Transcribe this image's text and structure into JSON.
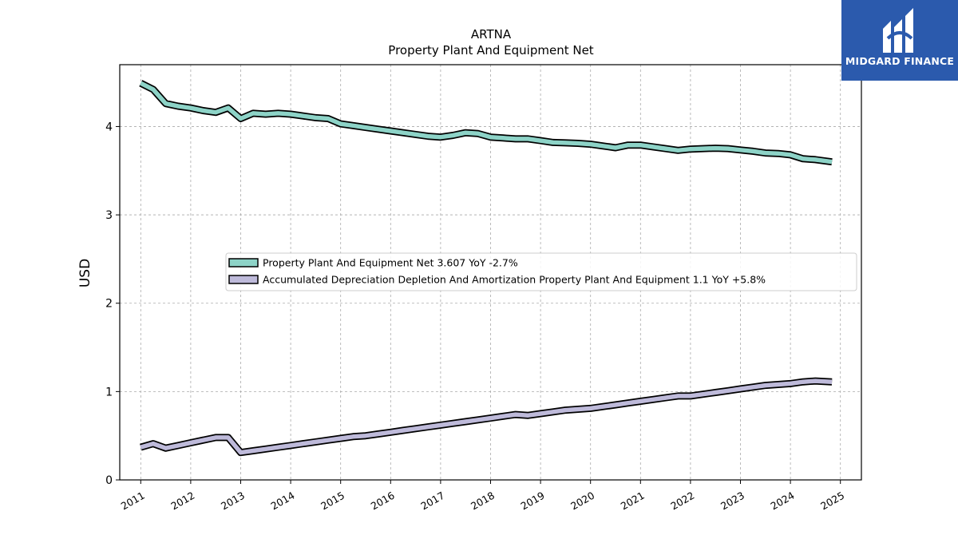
{
  "chart_data": {
    "type": "line",
    "title": "ARTNA",
    "subtitle": "Property Plant And Equipment Net",
    "xlabel": "",
    "ylabel": "USD",
    "xlim": [
      2010.58,
      2025.42
    ],
    "ylim": [
      0,
      4.7
    ],
    "x_ticks": [
      "2011",
      "2012",
      "2013",
      "2014",
      "2015",
      "2016",
      "2017",
      "2018",
      "2019",
      "2020",
      "2021",
      "2022",
      "2023",
      "2024",
      "2025"
    ],
    "y_ticks": [
      "0",
      "1",
      "2",
      "3",
      "4"
    ],
    "grid": true,
    "legend_position": "center-right",
    "series": [
      {
        "name": "Property Plant And Equipment Net",
        "legend_label": "Property Plant And Equipment Net  3.607 YoY -2.7%",
        "color": "#8dd3c7",
        "points": [
          [
            2011.0,
            4.49
          ],
          [
            2011.25,
            4.42
          ],
          [
            2011.5,
            4.26
          ],
          [
            2011.75,
            4.23
          ],
          [
            2012.0,
            4.21
          ],
          [
            2012.25,
            4.18
          ],
          [
            2012.5,
            4.16
          ],
          [
            2012.75,
            4.21
          ],
          [
            2013.0,
            4.09
          ],
          [
            2013.25,
            4.15
          ],
          [
            2013.5,
            4.14
          ],
          [
            2013.75,
            4.15
          ],
          [
            2014.0,
            4.14
          ],
          [
            2014.25,
            4.12
          ],
          [
            2014.5,
            4.1
          ],
          [
            2014.75,
            4.09
          ],
          [
            2015.0,
            4.03
          ],
          [
            2015.25,
            4.01
          ],
          [
            2015.5,
            3.99
          ],
          [
            2015.75,
            3.97
          ],
          [
            2016.0,
            3.95
          ],
          [
            2016.25,
            3.93
          ],
          [
            2016.5,
            3.91
          ],
          [
            2016.75,
            3.89
          ],
          [
            2017.0,
            3.88
          ],
          [
            2017.25,
            3.9
          ],
          [
            2017.5,
            3.93
          ],
          [
            2017.75,
            3.92
          ],
          [
            2018.0,
            3.88
          ],
          [
            2018.25,
            3.87
          ],
          [
            2018.5,
            3.86
          ],
          [
            2018.75,
            3.86
          ],
          [
            2019.0,
            3.84
          ],
          [
            2019.25,
            3.82
          ],
          [
            2019.5,
            3.815
          ],
          [
            2019.75,
            3.81
          ],
          [
            2020.0,
            3.8
          ],
          [
            2020.25,
            3.78
          ],
          [
            2020.5,
            3.76
          ],
          [
            2020.75,
            3.79
          ],
          [
            2021.0,
            3.79
          ],
          [
            2021.25,
            3.77
          ],
          [
            2021.5,
            3.75
          ],
          [
            2021.75,
            3.73
          ],
          [
            2022.0,
            3.745
          ],
          [
            2022.25,
            3.75
          ],
          [
            2022.5,
            3.755
          ],
          [
            2022.75,
            3.75
          ],
          [
            2023.0,
            3.735
          ],
          [
            2023.25,
            3.72
          ],
          [
            2023.5,
            3.7
          ],
          [
            2023.75,
            3.695
          ],
          [
            2024.0,
            3.68
          ],
          [
            2024.25,
            3.635
          ],
          [
            2024.5,
            3.625
          ],
          [
            2024.83,
            3.6
          ]
        ]
      },
      {
        "name": "Accumulated Depreciation Depletion And Amortization Property Plant And Equipment",
        "legend_label": "Accumulated Depreciation Depletion And Amortization Property Plant And Equipment  1.1 YoY +5.8%",
        "color": "#bebada",
        "points": [
          [
            2011.0,
            0.37
          ],
          [
            2011.25,
            0.41
          ],
          [
            2011.5,
            0.36
          ],
          [
            2011.75,
            0.39
          ],
          [
            2012.0,
            0.42
          ],
          [
            2012.25,
            0.45
          ],
          [
            2012.5,
            0.48
          ],
          [
            2012.75,
            0.48
          ],
          [
            2013.0,
            0.31
          ],
          [
            2013.25,
            0.33
          ],
          [
            2013.5,
            0.35
          ],
          [
            2013.75,
            0.37
          ],
          [
            2014.0,
            0.39
          ],
          [
            2014.25,
            0.41
          ],
          [
            2014.5,
            0.43
          ],
          [
            2014.75,
            0.45
          ],
          [
            2015.0,
            0.47
          ],
          [
            2015.25,
            0.49
          ],
          [
            2015.5,
            0.5
          ],
          [
            2015.75,
            0.52
          ],
          [
            2016.0,
            0.54
          ],
          [
            2016.25,
            0.56
          ],
          [
            2016.5,
            0.58
          ],
          [
            2016.75,
            0.6
          ],
          [
            2017.0,
            0.62
          ],
          [
            2017.25,
            0.64
          ],
          [
            2017.5,
            0.66
          ],
          [
            2017.75,
            0.68
          ],
          [
            2018.0,
            0.7
          ],
          [
            2018.25,
            0.72
          ],
          [
            2018.5,
            0.74
          ],
          [
            2018.75,
            0.73
          ],
          [
            2019.0,
            0.75
          ],
          [
            2019.25,
            0.77
          ],
          [
            2019.5,
            0.79
          ],
          [
            2019.75,
            0.8
          ],
          [
            2020.0,
            0.81
          ],
          [
            2020.25,
            0.83
          ],
          [
            2020.5,
            0.85
          ],
          [
            2020.75,
            0.87
          ],
          [
            2021.0,
            0.89
          ],
          [
            2021.25,
            0.91
          ],
          [
            2021.5,
            0.93
          ],
          [
            2021.75,
            0.95
          ],
          [
            2022.0,
            0.95
          ],
          [
            2022.25,
            0.97
          ],
          [
            2022.5,
            0.99
          ],
          [
            2022.75,
            1.01
          ],
          [
            2023.0,
            1.03
          ],
          [
            2023.25,
            1.05
          ],
          [
            2023.5,
            1.07
          ],
          [
            2023.75,
            1.08
          ],
          [
            2024.0,
            1.09
          ],
          [
            2024.25,
            1.11
          ],
          [
            2024.5,
            1.12
          ],
          [
            2024.83,
            1.11
          ]
        ]
      }
    ]
  },
  "logo": {
    "text": "MIDGARD FINANCE",
    "background": "#2b5aad"
  }
}
